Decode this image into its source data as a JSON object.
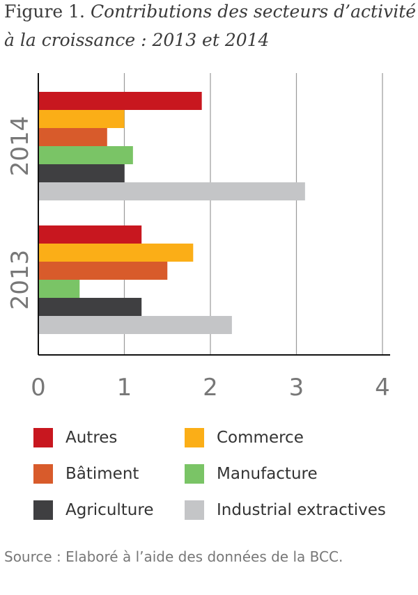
{
  "title": {
    "prefix": "Figure 1.",
    "line1": "Contributions des secteurs d’activité",
    "line2": "à la croissance : 2013 et 2014"
  },
  "chart_data": {
    "type": "bar",
    "orientation": "horizontal",
    "groups": [
      "2014",
      "2013"
    ],
    "series": [
      {
        "name": "Autres",
        "color": "#c8171f",
        "values": [
          1.9,
          1.2
        ]
      },
      {
        "name": "Commerce",
        "color": "#fbae17",
        "values": [
          1.0,
          1.8
        ]
      },
      {
        "name": "Bâtiment",
        "color": "#d85b2b",
        "values": [
          0.8,
          1.5
        ]
      },
      {
        "name": "Manufacture",
        "color": "#7ac466",
        "values": [
          1.1,
          0.48
        ]
      },
      {
        "name": "Agriculture",
        "color": "#3f3f41",
        "values": [
          1.0,
          1.2
        ]
      },
      {
        "name": "Industrial extractives",
        "color": "#c4c5c7",
        "values": [
          3.1,
          2.25
        ]
      }
    ],
    "x_ticks": [
      "0",
      "1",
      "2",
      "3",
      "4"
    ],
    "xlim": [
      0,
      4
    ],
    "grid": true,
    "legend_position": "bottom"
  },
  "source": "Source : Elaboré à l’aide des données de la BCC."
}
